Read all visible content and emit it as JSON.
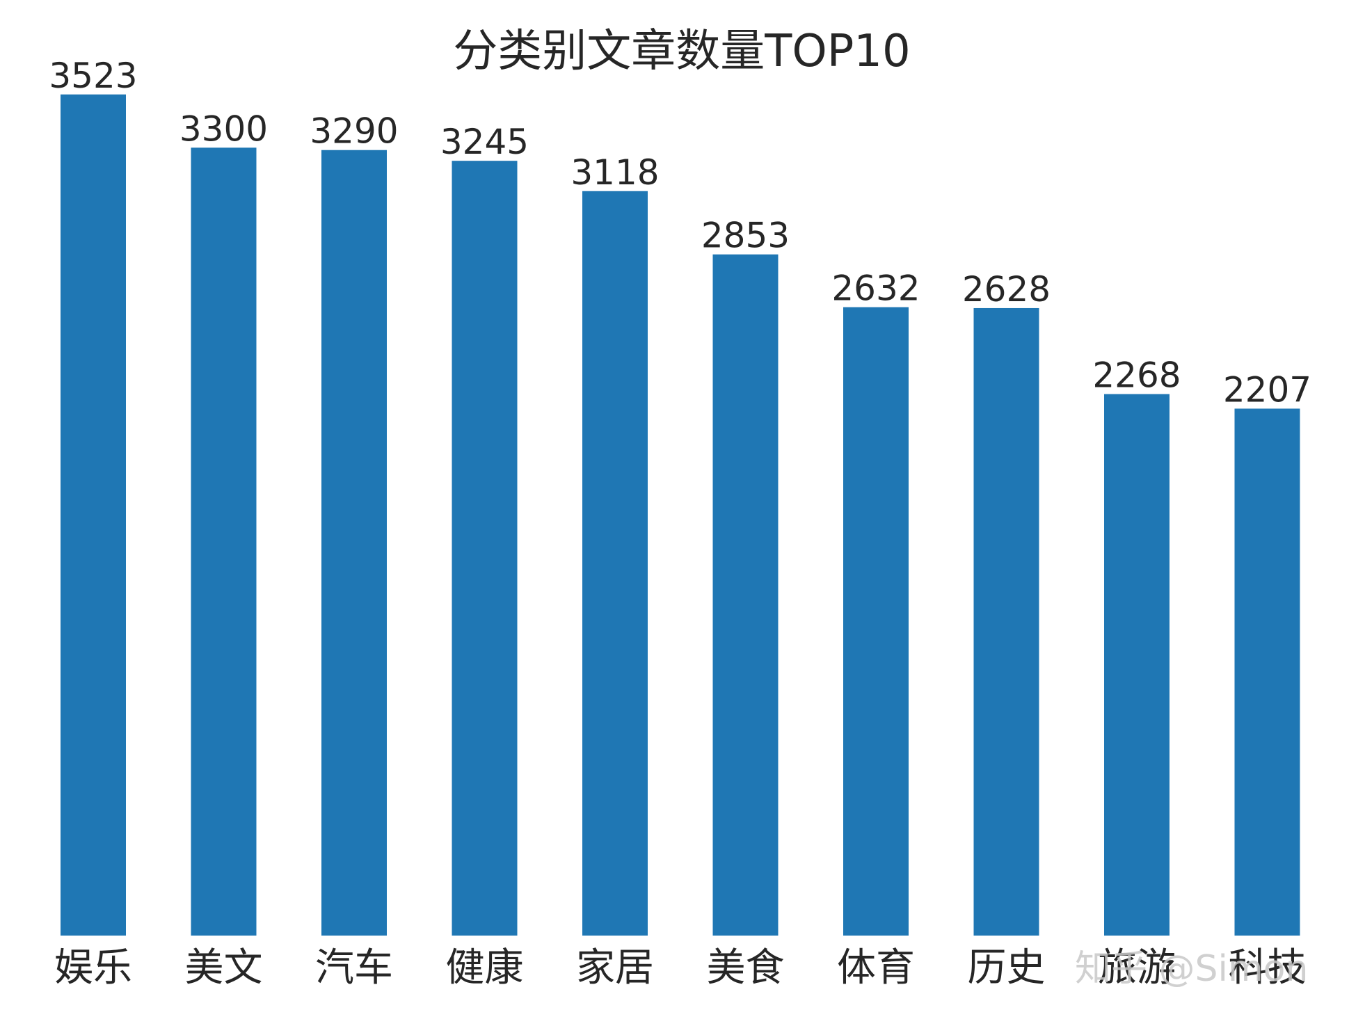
{
  "chart_data": {
    "type": "bar",
    "title": "分类别文章数量TOP10",
    "xlabel": "",
    "ylabel": "",
    "categories": [
      "娱乐",
      "美文",
      "汽车",
      "健康",
      "家居",
      "美食",
      "体育",
      "历史",
      "旅游",
      "科技"
    ],
    "values": [
      3523,
      3300,
      3290,
      3245,
      3118,
      2853,
      2632,
      2628,
      2268,
      2207
    ],
    "ylim": [
      0,
      3700
    ],
    "grid": false,
    "legend": "none",
    "bar_color": "#1f77b4"
  },
  "watermark": "知乎 @Simon"
}
